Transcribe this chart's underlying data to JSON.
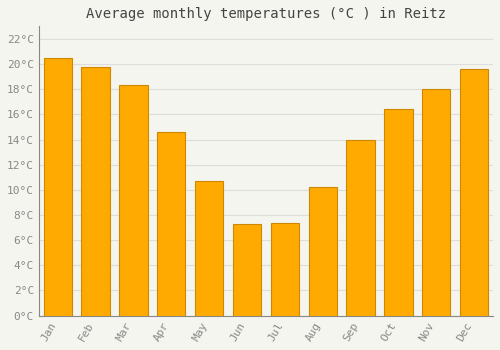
{
  "title": "Average monthly temperatures (°C ) in Reitz",
  "months": [
    "Jan",
    "Feb",
    "Mar",
    "Apr",
    "May",
    "Jun",
    "Jul",
    "Aug",
    "Sep",
    "Oct",
    "Nov",
    "Dec"
  ],
  "values": [
    20.5,
    19.8,
    18.3,
    14.6,
    10.7,
    7.3,
    7.4,
    10.2,
    14.0,
    16.4,
    18.0,
    19.6
  ],
  "bar_color": "#FFAA00",
  "bar_edge_color": "#CC8800",
  "background_color": "#F5F5F0",
  "grid_color": "#DDDDDD",
  "ytick_labels": [
    "0°C",
    "2°C",
    "4°C",
    "6°C",
    "8°C",
    "10°C",
    "12°C",
    "14°C",
    "16°C",
    "18°C",
    "20°C",
    "22°C"
  ],
  "ytick_values": [
    0,
    2,
    4,
    6,
    8,
    10,
    12,
    14,
    16,
    18,
    20,
    22
  ],
  "ylim": [
    0,
    23
  ],
  "title_fontsize": 10,
  "tick_fontsize": 8,
  "tick_color": "#888888",
  "title_color": "#444444",
  "bar_width": 0.75
}
